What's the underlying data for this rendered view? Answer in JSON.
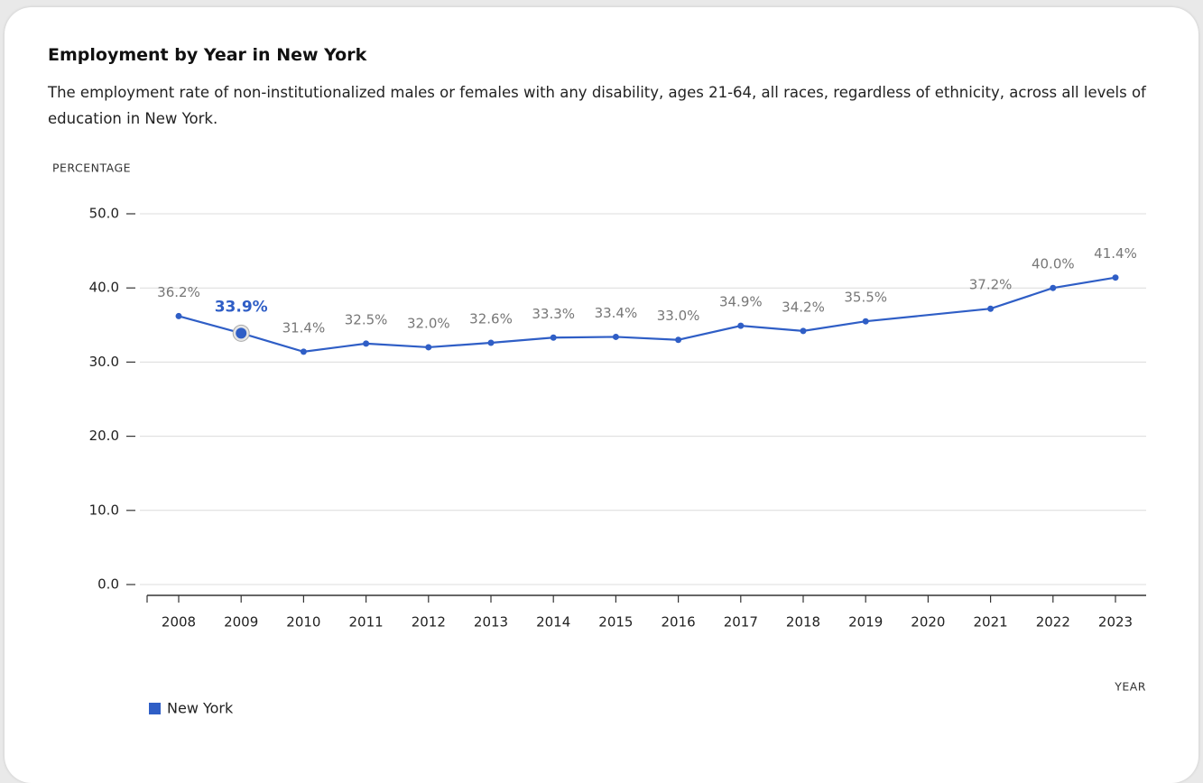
{
  "chart_data": {
    "type": "line",
    "title": "Employment by Year in New York",
    "subtitle": "The employment rate of non-institutionalized males or females with any disability, ages 21-64, all races, regardless of ethnicity, across all levels of education in New York.",
    "y_label": "PERCENTAGE",
    "x_label": "YEAR",
    "x": [
      2008,
      2009,
      2010,
      2011,
      2012,
      2013,
      2014,
      2015,
      2016,
      2017,
      2018,
      2019,
      2021,
      2022,
      2023
    ],
    "series": [
      {
        "name": "New York",
        "color": "#2f5ec6",
        "values": [
          36.2,
          33.9,
          31.4,
          32.5,
          32.0,
          32.6,
          33.3,
          33.4,
          33.0,
          34.9,
          34.2,
          35.5,
          37.2,
          40.0,
          41.4
        ],
        "value_labels": [
          "36.2%",
          "33.9%",
          "31.4%",
          "32.5%",
          "32.0%",
          "32.6%",
          "33.3%",
          "33.4%",
          "33.0%",
          "34.9%",
          "34.2%",
          "35.5%",
          "37.2%",
          "40.0%",
          "41.4%"
        ]
      }
    ],
    "highlight_x": 2009,
    "xlim": [
      2008,
      2023
    ],
    "xticks": [
      2008,
      2009,
      2010,
      2011,
      2012,
      2013,
      2014,
      2015,
      2016,
      2017,
      2018,
      2019,
      2020,
      2021,
      2022,
      2023
    ],
    "ylim": [
      0,
      50
    ],
    "yticks": [
      {
        "value": 0,
        "label": "0.0"
      },
      {
        "value": 10,
        "label": "10.0"
      },
      {
        "value": 20,
        "label": "20.0"
      },
      {
        "value": 30,
        "label": "30.0"
      },
      {
        "value": 40,
        "label": "40.0"
      },
      {
        "value": 50,
        "label": "50.0"
      }
    ],
    "grid": true,
    "legend": "bottom-left"
  }
}
